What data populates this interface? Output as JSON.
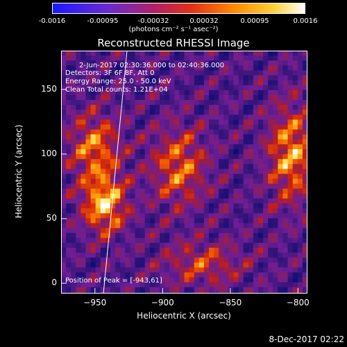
{
  "colorbar": {
    "ticks": [
      "-0.0016",
      "-0.00095",
      "-0.00032",
      "0.00032",
      "0.00095",
      "0.0016"
    ],
    "unit": "(photons cm⁻² s⁻¹ asec⁻²)"
  },
  "title": "Reconstructed RHESSI Image",
  "annotations": {
    "time": "2-Jun-2017 02:30:36.000 to 02:40:36.000",
    "detectors": "Detectors: 3F 6F 8F, Att 0",
    "energy": "Energy Range: 25.0 - 50.0 keV",
    "clean": "Clean     Total counts: 1.21E+04",
    "peak": "Position of Peak = [-943,61]"
  },
  "footer": "8-Dec-2017 02:22",
  "chart_data": {
    "type": "heatmap",
    "title": "Reconstructed RHESSI Image",
    "xlabel": "Heliocentric X (arcsec)",
    "ylabel": "Heliocentric Y (arcsec)",
    "xlim": [
      -975,
      -793
    ],
    "ylim": [
      -8,
      180
    ],
    "xticks": [
      -950,
      -900,
      -850,
      -800
    ],
    "yticks": [
      0,
      50,
      100,
      150
    ],
    "colorbar_range": [
      -0.0016,
      0.0016
    ],
    "colorbar_ticks": [
      -0.0016,
      -0.00095,
      -0.00032,
      0.00032,
      0.00095,
      0.0016
    ],
    "peak": [
      -943,
      61
    ],
    "grid": false,
    "colors": {
      "low": "#1a1aff",
      "mid": "#b0206a",
      "high": "#ffffff"
    }
  }
}
